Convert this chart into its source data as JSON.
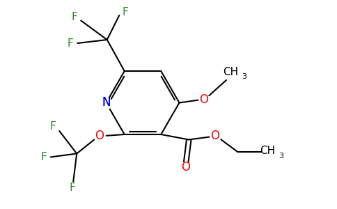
{
  "background_color": "#ffffff",
  "atom_colors": {
    "N": "#0000ff",
    "O": "#ff0000",
    "F": "#228B22",
    "C": "#000000"
  },
  "bond_color": "#000000",
  "bond_width": 1.5,
  "figsize": [
    4.84,
    3.0
  ],
  "dpi": 100,
  "xlim": [
    0,
    9.68
  ],
  "ylim": [
    0,
    6.0
  ]
}
